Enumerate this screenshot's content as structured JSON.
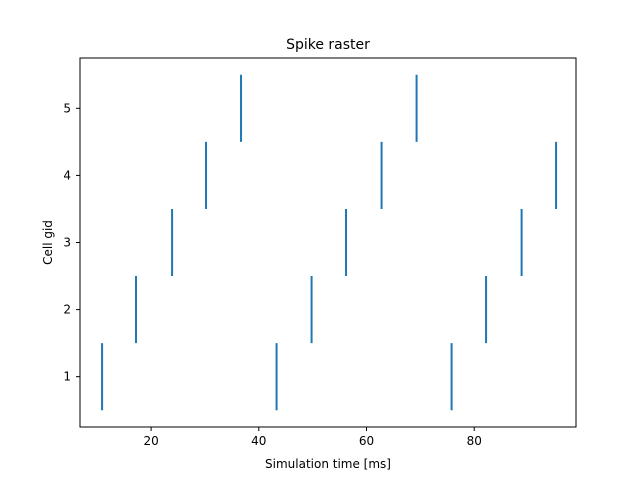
{
  "chart_data": {
    "type": "raster",
    "title": "Spike raster",
    "xlabel": "Simulation time [ms]",
    "ylabel": "Cell gid",
    "xlim": [
      6.8,
      98.9
    ],
    "ylim": [
      0.25,
      5.75
    ],
    "xticks": [
      20,
      40,
      60,
      80
    ],
    "xtick_labels": [
      "20",
      "40",
      "60",
      "80"
    ],
    "yticks": [
      1,
      2,
      3,
      4,
      5
    ],
    "ytick_labels": [
      "1",
      "2",
      "3",
      "4",
      "5"
    ],
    "grid": false,
    "color": "#1f77b4",
    "spikes": [
      {
        "time": 10.9,
        "gid": 1
      },
      {
        "time": 17.2,
        "gid": 2
      },
      {
        "time": 23.9,
        "gid": 3
      },
      {
        "time": 30.2,
        "gid": 4
      },
      {
        "time": 36.7,
        "gid": 5
      },
      {
        "time": 43.3,
        "gid": 1
      },
      {
        "time": 49.8,
        "gid": 2
      },
      {
        "time": 56.2,
        "gid": 3
      },
      {
        "time": 62.8,
        "gid": 4
      },
      {
        "time": 69.3,
        "gid": 5
      },
      {
        "time": 75.8,
        "gid": 1
      },
      {
        "time": 82.2,
        "gid": 2
      },
      {
        "time": 88.8,
        "gid": 3
      },
      {
        "time": 95.2,
        "gid": 4
      }
    ]
  }
}
